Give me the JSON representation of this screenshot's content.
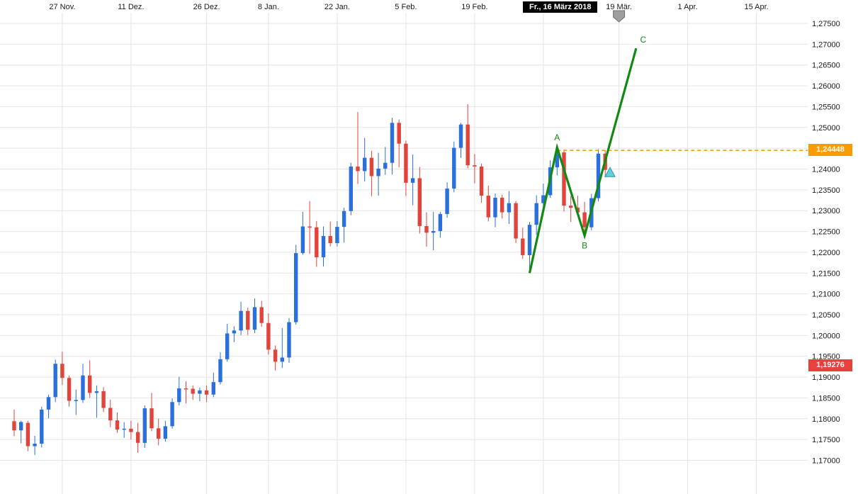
{
  "chart": {
    "tooltip_date": "Fr., 16 März 2018",
    "price_line_label": "1,24448",
    "current_price_label": "1,19276",
    "colors": {
      "up": "#2a6fdb",
      "down": "#e2443c",
      "projection_line": "#128a12",
      "dashed_level": "#fb9b00",
      "level_badge": "#fb9b00",
      "current_badge": "#e8403a",
      "grid": "#e4e4e4",
      "triangle_marker": "#63cede",
      "triangle_marker_border": "#1f98ac",
      "anchor_marker": "#9e9e9e",
      "anchor_marker_border": "#6f6f6f",
      "background": "#ffffff"
    }
  },
  "chart_data": {
    "type": "candlestick",
    "title": "",
    "grid": true,
    "x_axis": {
      "position": "top",
      "ticks": [
        {
          "label": "27 Nov.",
          "i": 7
        },
        {
          "label": "11 Dez.",
          "i": 17
        },
        {
          "label": "26 Dez.",
          "i": 28
        },
        {
          "label": "8 Jan.",
          "i": 37
        },
        {
          "label": "22 Jan.",
          "i": 47
        },
        {
          "label": "5 Feb.",
          "i": 57
        },
        {
          "label": "19 Feb.",
          "i": 67
        },
        {
          "label": "5 Mär.",
          "i": 77
        },
        {
          "label": "19 Mär.",
          "i": 88
        },
        {
          "label": "1 Apr.",
          "i": 98
        },
        {
          "label": "15 Apr.",
          "i": 108
        }
      ]
    },
    "y_axis": {
      "position": "right",
      "min": 1.17,
      "max": 1.275,
      "step": 0.005,
      "labels": [
        "1,27500",
        "1,27000",
        "1,26500",
        "1,26000",
        "1,25500",
        "1,25000",
        "1,24500",
        "1,24000",
        "1,23500",
        "1,23000",
        "1,22500",
        "1,22000",
        "1,21500",
        "1,21000",
        "1,20500",
        "1,20000",
        "1,19500",
        "1,19000",
        "1,18500",
        "1,18000",
        "1,17500",
        "1,17000"
      ]
    },
    "candles": [
      [
        1.1794,
        1.1822,
        1.1758,
        1.1772
      ],
      [
        1.1772,
        1.1795,
        1.1741,
        1.1792
      ],
      [
        1.179,
        1.1795,
        1.1722,
        1.1734
      ],
      [
        1.1734,
        1.1759,
        1.1713,
        1.174
      ],
      [
        1.174,
        1.1829,
        1.1731,
        1.1822
      ],
      [
        1.1822,
        1.1858,
        1.1801,
        1.1852
      ],
      [
        1.1852,
        1.1942,
        1.184,
        1.1932
      ],
      [
        1.1932,
        1.1961,
        1.1881,
        1.1898
      ],
      [
        1.1898,
        1.1904,
        1.1829,
        1.1843
      ],
      [
        1.1843,
        1.187,
        1.1809,
        1.1845
      ],
      [
        1.1845,
        1.1932,
        1.1838,
        1.1904
      ],
      [
        1.1904,
        1.194,
        1.185,
        1.1862
      ],
      [
        1.1862,
        1.188,
        1.1802,
        1.1866
      ],
      [
        1.1866,
        1.1876,
        1.1816,
        1.1826
      ],
      [
        1.1826,
        1.1846,
        1.178,
        1.1796
      ],
      [
        1.1796,
        1.1815,
        1.1766,
        1.1774
      ],
      [
        1.1774,
        1.1792,
        1.1754,
        1.1776
      ],
      [
        1.1776,
        1.1795,
        1.175,
        1.1768
      ],
      [
        1.1768,
        1.179,
        1.1718,
        1.1742
      ],
      [
        1.1742,
        1.1832,
        1.173,
        1.1825
      ],
      [
        1.1825,
        1.1862,
        1.177,
        1.1777
      ],
      [
        1.1777,
        1.18,
        1.1736,
        1.1752
      ],
      [
        1.1752,
        1.1795,
        1.1745,
        1.1782
      ],
      [
        1.1782,
        1.1849,
        1.1776,
        1.184
      ],
      [
        1.184,
        1.1901,
        1.1832,
        1.1873
      ],
      [
        1.1873,
        1.189,
        1.1837,
        1.1872
      ],
      [
        1.1872,
        1.188,
        1.1845,
        1.186
      ],
      [
        1.186,
        1.1875,
        1.1842,
        1.1868
      ],
      [
        1.1868,
        1.188,
        1.184,
        1.1858
      ],
      [
        1.1858,
        1.1911,
        1.1852,
        1.1888
      ],
      [
        1.1888,
        1.1959,
        1.1882,
        1.1943
      ],
      [
        1.1943,
        1.2028,
        1.1937,
        1.2005
      ],
      [
        1.2005,
        1.2022,
        1.1984,
        1.2012
      ],
      [
        1.2012,
        1.2081,
        1.2001,
        1.2059
      ],
      [
        1.2059,
        1.2067,
        1.2001,
        1.2014
      ],
      [
        1.2014,
        1.2089,
        1.2006,
        1.2068
      ],
      [
        1.2068,
        1.2083,
        1.2021,
        1.203
      ],
      [
        1.203,
        1.2053,
        1.1954,
        1.1966
      ],
      [
        1.1966,
        1.1976,
        1.1916,
        1.1937
      ],
      [
        1.1937,
        1.2018,
        1.1922,
        1.1947
      ],
      [
        1.1947,
        1.2042,
        1.1934,
        1.2032
      ],
      [
        1.2032,
        1.2218,
        1.2026,
        1.2198
      ],
      [
        1.2198,
        1.2297,
        1.2194,
        1.2262
      ],
      [
        1.2262,
        1.2323,
        1.2196,
        1.226
      ],
      [
        1.226,
        1.2275,
        1.2165,
        1.2188
      ],
      [
        1.2188,
        1.2262,
        1.2166,
        1.2239
      ],
      [
        1.2239,
        1.2274,
        1.2214,
        1.2222
      ],
      [
        1.2222,
        1.2275,
        1.2214,
        1.2261
      ],
      [
        1.2261,
        1.2307,
        1.2223,
        1.2299
      ],
      [
        1.2299,
        1.2415,
        1.2289,
        1.2406
      ],
      [
        1.2406,
        1.2537,
        1.2364,
        1.2395
      ],
      [
        1.2395,
        1.2475,
        1.237,
        1.2427
      ],
      [
        1.2427,
        1.2444,
        1.2335,
        1.2383
      ],
      [
        1.2383,
        1.2439,
        1.2336,
        1.2401
      ],
      [
        1.2401,
        1.2453,
        1.2386,
        1.2415
      ],
      [
        1.2415,
        1.2523,
        1.2387,
        1.2511
      ],
      [
        1.2511,
        1.2519,
        1.2404,
        1.2461
      ],
      [
        1.2461,
        1.2468,
        1.2335,
        1.2367
      ],
      [
        1.2367,
        1.2435,
        1.2313,
        1.2378
      ],
      [
        1.2378,
        1.2405,
        1.2245,
        1.2263
      ],
      [
        1.2263,
        1.2296,
        1.2213,
        1.2247
      ],
      [
        1.2247,
        1.2297,
        1.2205,
        1.2251
      ],
      [
        1.2251,
        1.2297,
        1.2235,
        1.2292
      ],
      [
        1.2292,
        1.2368,
        1.2283,
        1.2353
      ],
      [
        1.2353,
        1.2466,
        1.2344,
        1.2451
      ],
      [
        1.2451,
        1.2511,
        1.2427,
        1.2507
      ],
      [
        1.2507,
        1.2556,
        1.2402,
        1.2409
      ],
      [
        1.2409,
        1.2436,
        1.2366,
        1.2406
      ],
      [
        1.2406,
        1.2413,
        1.2319,
        1.2336
      ],
      [
        1.2336,
        1.236,
        1.2274,
        1.2284
      ],
      [
        1.2284,
        1.2341,
        1.226,
        1.2331
      ],
      [
        1.2331,
        1.2338,
        1.2281,
        1.2296
      ],
      [
        1.2296,
        1.2347,
        1.2268,
        1.2318
      ],
      [
        1.2318,
        1.2323,
        1.2222,
        1.2233
      ],
      [
        1.2233,
        1.2259,
        1.2184,
        1.2193
      ],
      [
        1.2193,
        1.2273,
        1.2155,
        1.2266
      ],
      [
        1.2266,
        1.2337,
        1.2242,
        1.2318
      ],
      [
        1.2318,
        1.2365,
        1.23,
        1.2337
      ],
      [
        1.2337,
        1.2421,
        1.2331,
        1.2404
      ],
      [
        1.2404,
        1.2446,
        1.2385,
        1.244
      ],
      [
        1.244,
        1.2447,
        1.2298,
        1.2312
      ],
      [
        1.2312,
        1.2335,
        1.2273,
        1.2307
      ],
      [
        1.2307,
        1.2336,
        1.229,
        1.2296
      ],
      [
        1.2296,
        1.2321,
        1.2245,
        1.226
      ],
      [
        1.226,
        1.234,
        1.2253,
        1.233
      ],
      [
        1.233,
        1.2448,
        1.2322,
        1.2437
      ],
      [
        1.2437,
        1.2446,
        1.238,
        1.2398
      ]
    ],
    "overlays": {
      "abc_projection": {
        "points": [
          [
            75,
            1.215
          ],
          [
            79,
            1.2452
          ],
          [
            83,
            1.224
          ],
          [
            90.5,
            1.269
          ]
        ],
        "labels": [
          [
            "A",
            79,
            1.2452,
            0,
            -10
          ],
          [
            "B",
            83,
            1.224,
            0,
            18
          ],
          [
            "C",
            90.5,
            1.269,
            10,
            -8
          ]
        ]
      },
      "dashed_level": {
        "price": 1.24448,
        "from_i": 79
      },
      "current_price": {
        "price": 1.19276
      },
      "triangle_marker": {
        "i": 86.7,
        "price": 1.2392
      },
      "anchor_marker": {
        "i": 88
      }
    }
  }
}
